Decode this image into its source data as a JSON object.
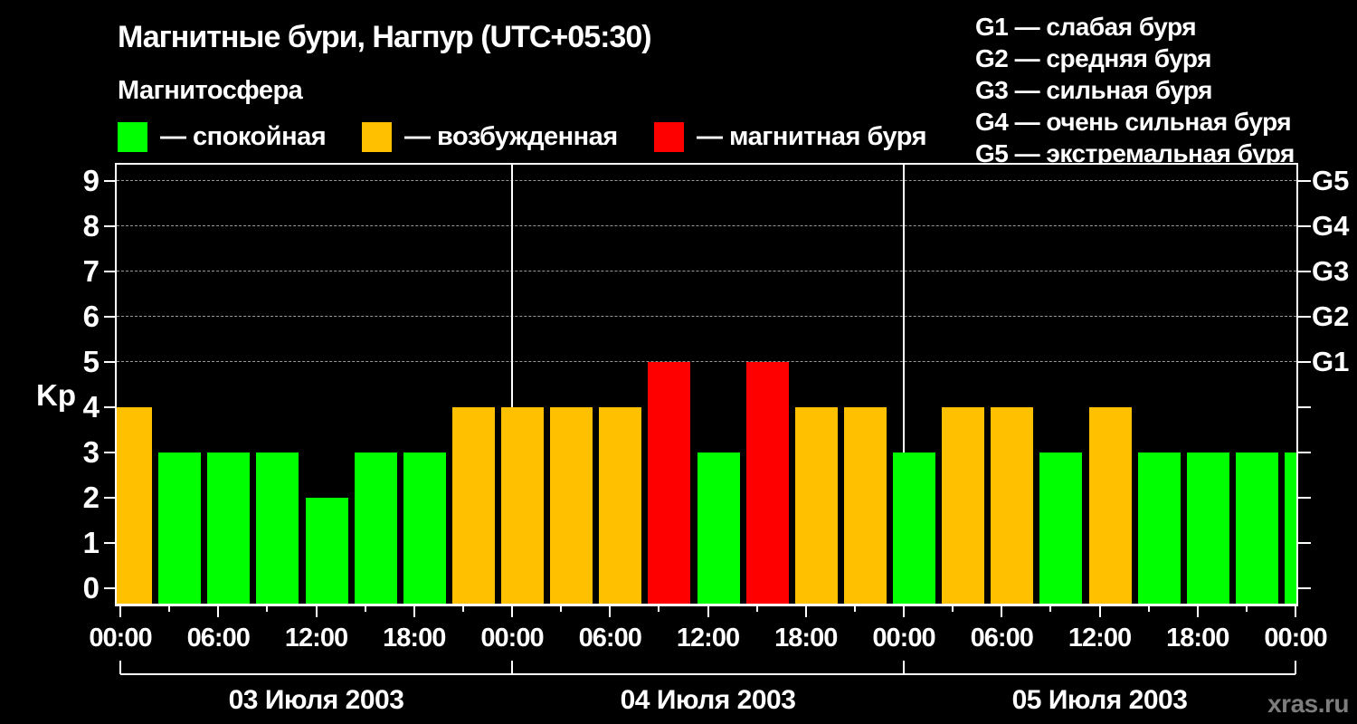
{
  "title": "Магнитные бури, Нагпур (UTC+05:30)",
  "magnetosphere": {
    "label": "Магнитосфера",
    "items": [
      {
        "name": "quiet",
        "label": "— спокойная",
        "color": "#00ff00"
      },
      {
        "name": "excited",
        "label": "— возбужденная",
        "color": "#ffc000"
      },
      {
        "name": "storm",
        "label": "— магнитная буря",
        "color": "#ff0000"
      }
    ]
  },
  "g_legend": [
    "G1 — слабая буря",
    "G2 — средняя буря",
    "G3 — сильная буря",
    "G4 — очень сильная буря",
    "G5 — экстремальная буря"
  ],
  "watermark": "xras.ru",
  "chart_data": {
    "type": "bar",
    "title": "Магнитные бури, Нагпур (UTC+05:30)",
    "ylabel": "Kp",
    "ylim": [
      0,
      9
    ],
    "y_ticks": [
      0,
      1,
      2,
      3,
      4,
      5,
      6,
      7,
      8,
      9
    ],
    "right_axis": [
      {
        "kp": 5,
        "label": "G1"
      },
      {
        "kp": 6,
        "label": "G2"
      },
      {
        "kp": 7,
        "label": "G3"
      },
      {
        "kp": 8,
        "label": "G4"
      },
      {
        "kp": 9,
        "label": "G5"
      }
    ],
    "dashed_gridlines_at": [
      5,
      6,
      7,
      8,
      9
    ],
    "interval_hours": 3,
    "hour_tick_labels": [
      "00:00",
      "06:00",
      "12:00",
      "18:00",
      "00:00",
      "06:00",
      "12:00",
      "18:00",
      "00:00",
      "06:00",
      "12:00",
      "18:00",
      "00:00"
    ],
    "days": [
      {
        "date": "03 Июля 2003",
        "kp": [
          4,
          3,
          3,
          3,
          2,
          3,
          3,
          4
        ]
      },
      {
        "date": "04 Июля 2003",
        "kp": [
          4,
          4,
          4,
          5,
          3,
          5,
          4,
          4
        ]
      },
      {
        "date": "05 Июля 2003",
        "kp": [
          3,
          4,
          4,
          3,
          4,
          3,
          3,
          3
        ]
      }
    ],
    "next_day_partial_kp": 3,
    "color_thresholds": {
      "quiet_below": 4,
      "storm_from": 5
    },
    "colors": {
      "quiet": "#00ff00",
      "excited": "#ffc000",
      "storm": "#ff0000"
    },
    "grid": "dashed horizontal lines at G levels only",
    "legend_position": "top"
  }
}
